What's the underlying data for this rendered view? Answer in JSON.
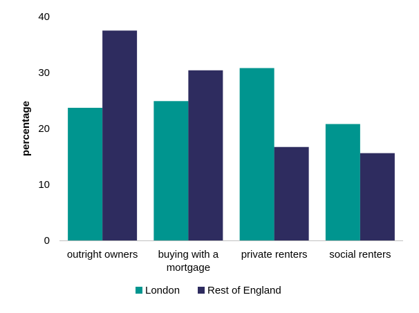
{
  "chart_data": {
    "type": "bar",
    "ylabel": "percentage",
    "categories": [
      "outright owners",
      "buying with a mortgage",
      "private renters",
      "social renters"
    ],
    "category_lines": [
      [
        "outright owners"
      ],
      [
        "buying with a",
        "mortgage"
      ],
      [
        "private renters"
      ],
      [
        "social renters"
      ]
    ],
    "series": [
      {
        "name": "London",
        "color": "#00958F",
        "values": [
          23.7,
          24.9,
          30.8,
          20.8
        ]
      },
      {
        "name": "Rest of England",
        "color": "#2E2C5F",
        "values": [
          37.5,
          30.4,
          16.7,
          15.6
        ]
      }
    ],
    "ylim": [
      0,
      40
    ],
    "yticks": [
      0,
      10,
      20,
      30,
      40
    ],
    "grid": false,
    "legend": "bottom-center"
  }
}
